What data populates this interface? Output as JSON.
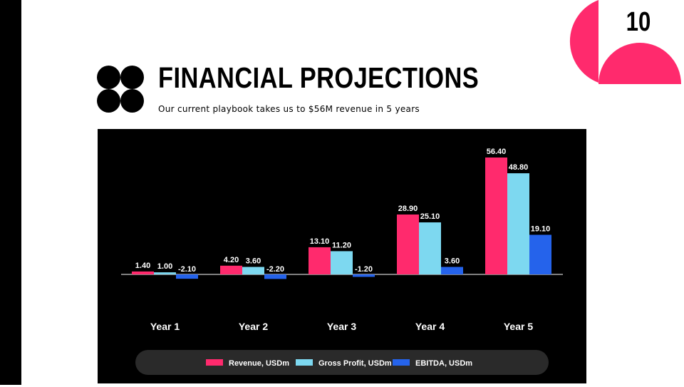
{
  "slide": {
    "number": "10",
    "title": "FINANCIAL PROJECTIONS",
    "subtitle": "Our current playbook takes us to $56M revenue in 5 years"
  },
  "colors": {
    "accent": "#ff2a6d",
    "revenue": "#ff2a6d",
    "gross_profit": "#7dd8f0",
    "ebitda": "#2563eb",
    "panel": "#000000",
    "legend_bg": "#2a2a2a"
  },
  "chart_data": {
    "type": "bar",
    "title": "",
    "xlabel": "",
    "ylabel": "",
    "categories": [
      "Year 1",
      "Year 2",
      "Year 3",
      "Year 4",
      "Year 5"
    ],
    "series": [
      {
        "name": "Revenue, USDm",
        "values": [
          1.4,
          4.2,
          13.1,
          28.9,
          56.4
        ],
        "labels": [
          "1.40",
          "4.20",
          "13.10",
          "28.90",
          "56.40"
        ],
        "color": "#ff2a6d"
      },
      {
        "name": "Gross Profit, USDm",
        "values": [
          1.0,
          3.6,
          11.2,
          25.1,
          48.8
        ],
        "labels": [
          "1.00",
          "3.60",
          "11.20",
          "25.10",
          "48.80"
        ],
        "color": "#7dd8f0"
      },
      {
        "name": "EBITDA, USDm",
        "values": [
          -2.1,
          -2.2,
          -1.2,
          3.6,
          19.1
        ],
        "labels": [
          "-2.10",
          "-2.20",
          "-1.20",
          "3.60",
          "19.10"
        ],
        "color": "#2563eb"
      }
    ],
    "ylim": [
      -2.2,
      56.4
    ],
    "grid": false,
    "legend": "bottom"
  }
}
